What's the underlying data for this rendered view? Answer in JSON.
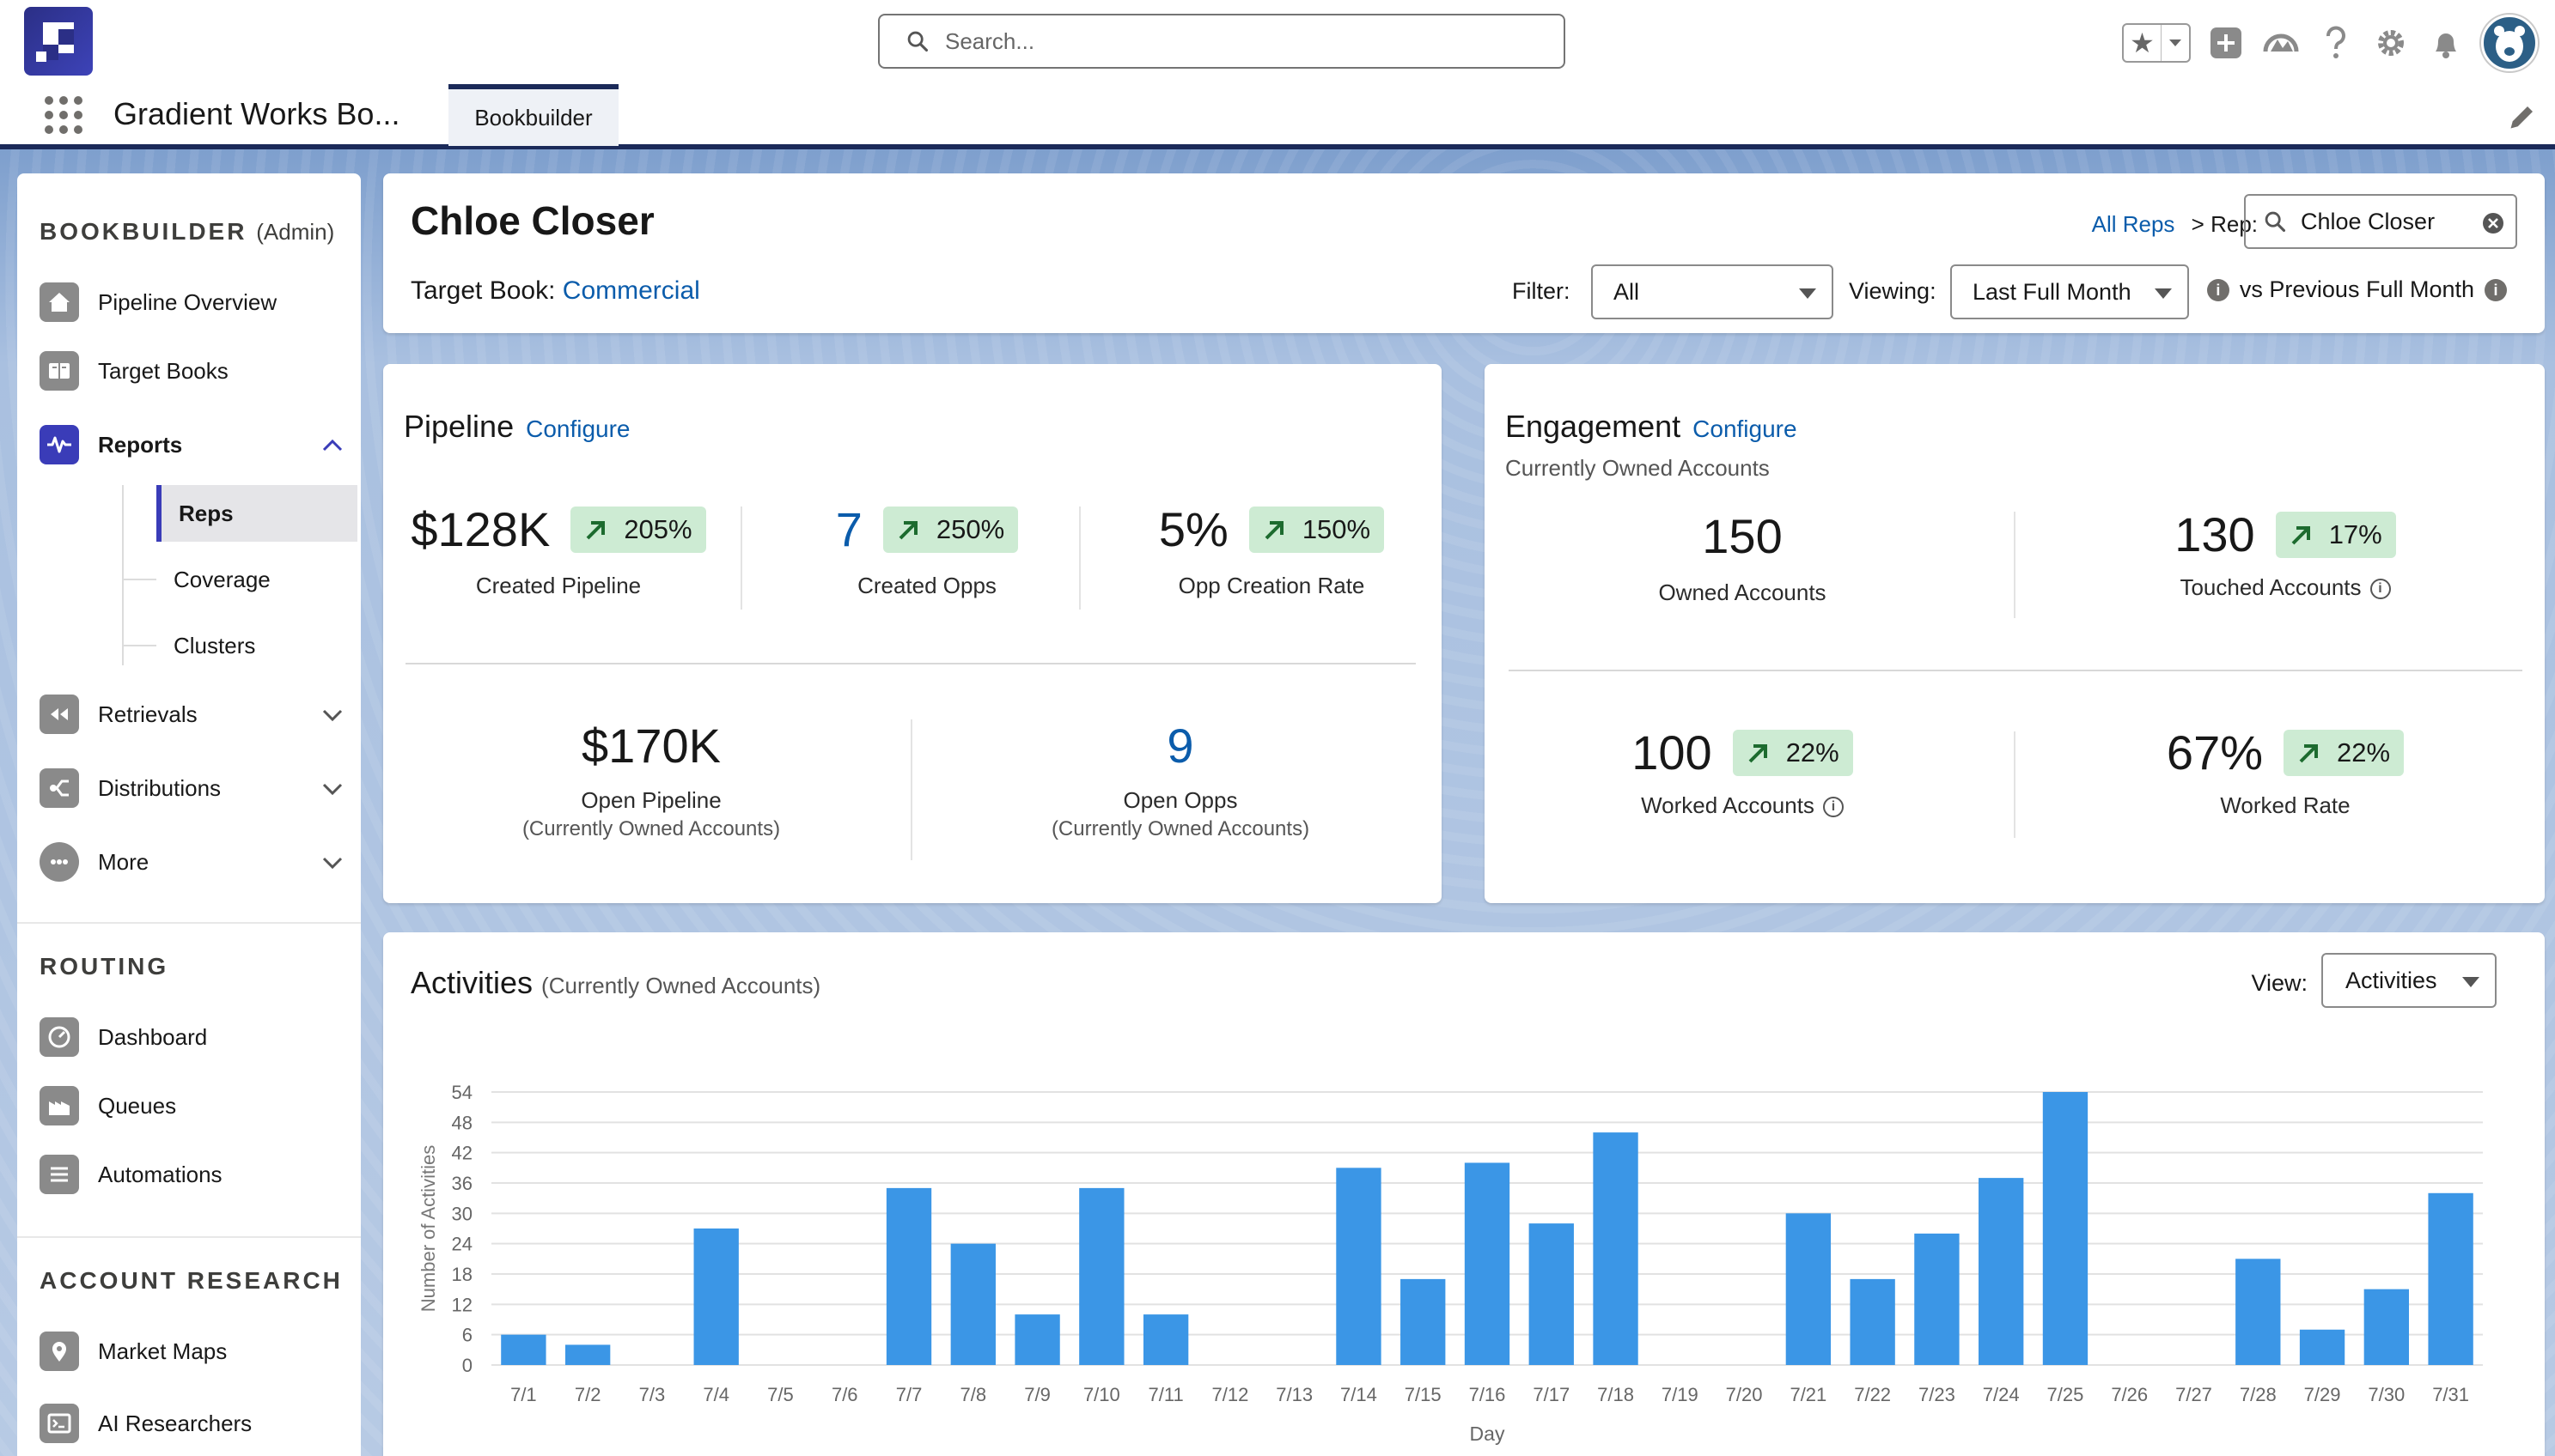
{
  "header": {
    "search_placeholder": "Search...",
    "app_name": "Gradient Works Bo...",
    "tab_label": "Bookbuilder"
  },
  "sidebar": {
    "title": "BOOKBUILDER",
    "title_suffix": "(Admin)",
    "items": [
      {
        "label": "Pipeline Overview",
        "icon": "home-icon"
      },
      {
        "label": "Target Books",
        "icon": "book-icon"
      },
      {
        "label": "Reports",
        "icon": "pulse-icon"
      },
      {
        "label": "Retrievals",
        "icon": "rewind-icon"
      },
      {
        "label": "Distributions",
        "icon": "split-icon"
      },
      {
        "label": "More",
        "icon": "more-icon"
      }
    ],
    "report_subitems": [
      "Reps",
      "Coverage",
      "Clusters"
    ],
    "routing_title": "ROUTING",
    "routing_items": [
      {
        "label": "Dashboard",
        "icon": "gauge-icon"
      },
      {
        "label": "Queues",
        "icon": "factory-icon"
      },
      {
        "label": "Automations",
        "icon": "flow-icon"
      }
    ],
    "research_title": "ACCOUNT RESEARCH",
    "research_items": [
      {
        "label": "Market Maps",
        "icon": "map-pin-icon"
      },
      {
        "label": "AI Researchers",
        "icon": "terminal-icon"
      }
    ]
  },
  "rep": {
    "name": "Chloe Closer",
    "target_book_label": "Target Book:",
    "target_book_value": "Commercial",
    "all_reps_link": "All Reps",
    "rep_label": "> Rep:",
    "rep_value": "Chloe Closer",
    "filter_label": "Filter:",
    "filter_value": "All",
    "viewing_label": "Viewing:",
    "viewing_value": "Last Full Month",
    "compare_label": "vs Previous Full Month"
  },
  "pipeline": {
    "title": "Pipeline",
    "configure": "Configure",
    "metrics": [
      {
        "value": "$128K",
        "change": "205%",
        "label": "Created Pipeline"
      },
      {
        "value": "7",
        "change": "250%",
        "label": "Created Opps"
      },
      {
        "value": "5%",
        "change": "150%",
        "label": "Opp Creation Rate"
      }
    ],
    "bottom": [
      {
        "value": "$170K",
        "label": "Open Pipeline",
        "sub": "(Currently Owned Accounts)"
      },
      {
        "value": "9",
        "label": "Open Opps",
        "sub": "(Currently Owned Accounts)"
      }
    ]
  },
  "engagement": {
    "title": "Engagement",
    "configure": "Configure",
    "subtitle": "Currently Owned Accounts",
    "metrics": [
      {
        "value": "150",
        "change": "",
        "label": "Owned Accounts"
      },
      {
        "value": "130",
        "change": "17%",
        "label": "Touched Accounts"
      },
      {
        "value": "100",
        "change": "22%",
        "label": "Worked Accounts"
      },
      {
        "value": "67%",
        "change": "22%",
        "label": "Worked Rate"
      }
    ]
  },
  "activities": {
    "title": "Activities",
    "title_suffix": "(Currently Owned Accounts)",
    "view_label": "View:",
    "view_value": "Activities"
  },
  "colors": {
    "bar": "#3b96e6",
    "badge": "#cdebd3",
    "link": "#0b5cab",
    "accent": "#3a3cb8"
  },
  "chart_data": {
    "type": "bar",
    "xlabel": "Day",
    "ylabel": "Number of Activities",
    "ylim": [
      0,
      54
    ],
    "yticks": [
      0,
      6,
      12,
      18,
      24,
      30,
      36,
      42,
      48,
      54
    ],
    "grid": true,
    "categories": [
      "7/1",
      "7/2",
      "7/3",
      "7/4",
      "7/5",
      "7/6",
      "7/7",
      "7/8",
      "7/9",
      "7/10",
      "7/11",
      "7/12",
      "7/13",
      "7/14",
      "7/15",
      "7/16",
      "7/17",
      "7/18",
      "7/19",
      "7/20",
      "7/21",
      "7/22",
      "7/23",
      "7/24",
      "7/25",
      "7/26",
      "7/27",
      "7/28",
      "7/29",
      "7/30",
      "7/31"
    ],
    "values": [
      6,
      4,
      0,
      27,
      0,
      0,
      35,
      24,
      10,
      35,
      10,
      0,
      0,
      39,
      17,
      40,
      28,
      46,
      0,
      0,
      30,
      17,
      26,
      37,
      54,
      0,
      0,
      21,
      7,
      15,
      34
    ]
  }
}
